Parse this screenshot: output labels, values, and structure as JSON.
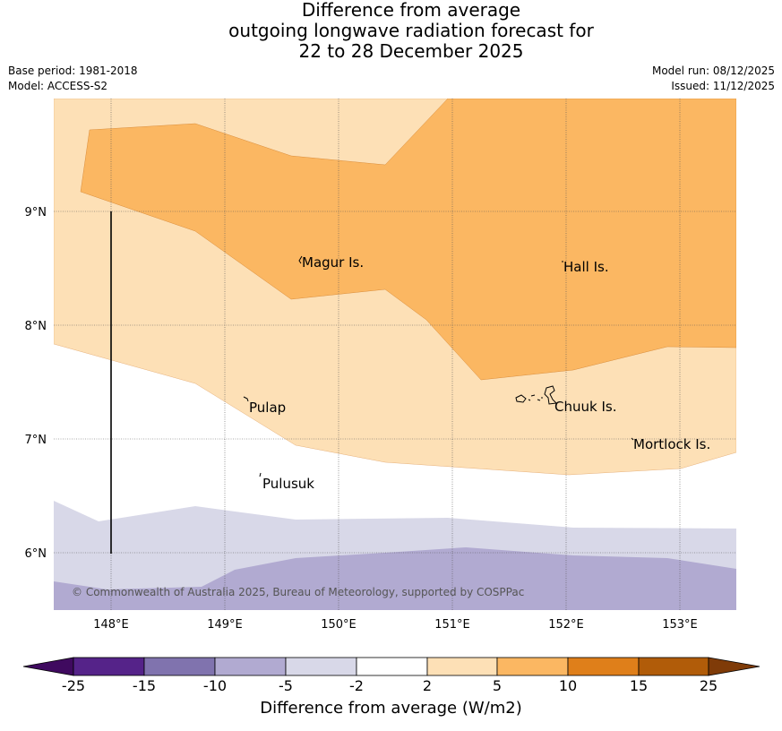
{
  "title": {
    "line1": "Difference from average",
    "line2": "outgoing longwave radiation forecast for",
    "line3": "22 to 28 December 2025"
  },
  "meta": {
    "base_period": "Base period: 1981-2018",
    "model": "Model: ACCESS-S2",
    "model_run": "Model run: 08/12/2025",
    "issued": "Issued: 11/12/2025"
  },
  "map": {
    "lon_labels": [
      "148°E",
      "149°E",
      "150°E",
      "151°E",
      "152°E",
      "153°E"
    ],
    "lat_labels": [
      "9°N",
      "8°N",
      "7°N",
      "6°N"
    ],
    "place_labels": [
      "Magur Is.",
      "Hall Is.",
      "Pulap",
      "Chuuk Is.",
      "Mortlock Is.",
      "Pulusuk"
    ],
    "copyright": "© Commonwealth of Australia 2025, Bureau of Meteorology, supported by COSPPac"
  },
  "colorbar": {
    "title": "Difference from average (W/m2)",
    "tick_labels": [
      "-25",
      "-15",
      "-10",
      "-5",
      "-2",
      "2",
      "5",
      "10",
      "15",
      "25"
    ],
    "colors": {
      "lt_-25": "#3f0a5f",
      "-25_-15": "#552389",
      "-15_-10": "#8073ae",
      "-10_-5": "#b1aad1",
      "-5_-2": "#d8d8e8",
      "-2_2": "#ffffff",
      "2_5": "#fde0b6",
      "5_10": "#fbb762",
      "10_15": "#df7f1a",
      "15_25": "#b15c09",
      "gt_25": "#7f3b08"
    }
  }
}
